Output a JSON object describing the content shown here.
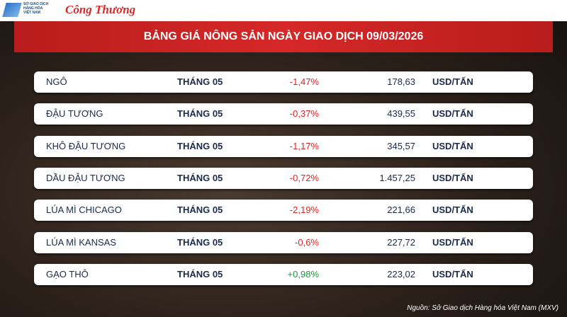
{
  "header": {
    "exchange_logo_lines": [
      "SỞ GIAO DỊCH",
      "HÀNG HÓA",
      "VIỆT NAM"
    ],
    "brand": "Công Thương"
  },
  "title": "BẢNG GIÁ NÔNG SẢN NGÀY GIAO DỊCH 09/03/2026",
  "table": {
    "rows": [
      {
        "name": "NGÔ",
        "month": "THÁNG 05",
        "change": "-1,47%",
        "change_color": "#e02424",
        "price": "178,63",
        "unit": "USD/TẤN"
      },
      {
        "name": "ĐẬU TƯƠNG",
        "month": "THÁNG 05",
        "change": "-0,37%",
        "change_color": "#e02424",
        "price": "439,55",
        "unit": "USD/TẤN"
      },
      {
        "name": "KHÔ ĐẬU TƯƠNG",
        "month": "THÁNG 05",
        "change": "-1,17%",
        "change_color": "#e02424",
        "price": "345,57",
        "unit": "USD/TẤN"
      },
      {
        "name": "DẦU ĐẬU TƯƠNG",
        "month": "THÁNG 05",
        "change": "-0,72%",
        "change_color": "#e02424",
        "price": "1.457,25",
        "unit": "USD/TẤN"
      },
      {
        "name": "LÚA MÌ CHICAGO",
        "month": "THÁNG 05",
        "change": "-2,19%",
        "change_color": "#e02424",
        "price": "221,66",
        "unit": "USD/TẤN"
      },
      {
        "name": "LÚA MÌ KANSAS",
        "month": "THÁNG 05",
        "change": "-0,6%",
        "change_color": "#e02424",
        "price": "227,72",
        "unit": "USD/TẤN"
      },
      {
        "name": "GẠO THÔ",
        "month": "THÁNG 05",
        "change": "+0,98%",
        "change_color": "#1a9a3a",
        "price": "223,02",
        "unit": "USD/TẤN"
      }
    ]
  },
  "source": "Nguồn: Sở Giao dịch Hàng hóa Việt Nam (MXV)"
}
